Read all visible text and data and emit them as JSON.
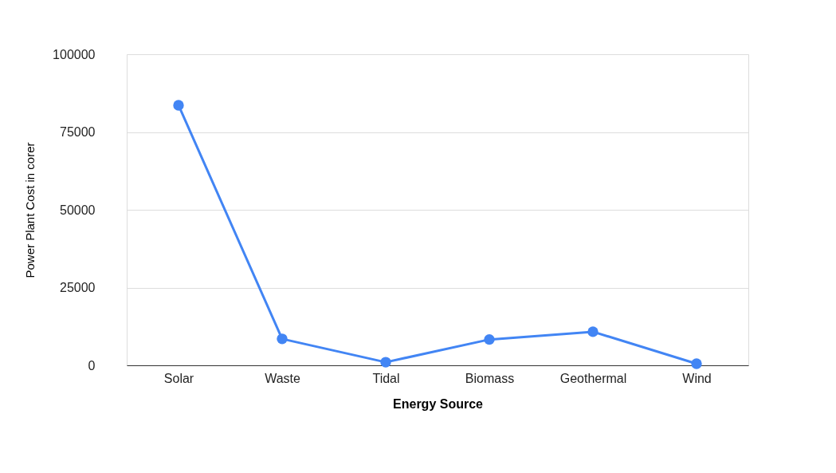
{
  "chart_data": {
    "type": "line",
    "categories": [
      "Solar",
      "Waste",
      "Tidal",
      "Biomass",
      "Geothermal",
      "Wind"
    ],
    "series": [
      {
        "color": "#4285f4",
        "values": [
          83600,
          8500,
          1000,
          8300,
          10800,
          500
        ]
      }
    ],
    "xlabel": "Energy Source",
    "ylabel": "Power Plant Cost in corer",
    "ylim": [
      0,
      100000
    ],
    "yticks": [
      0,
      25000,
      50000,
      75000,
      100000
    ],
    "grid": "y",
    "marker": "circle",
    "line_style": "solid"
  }
}
